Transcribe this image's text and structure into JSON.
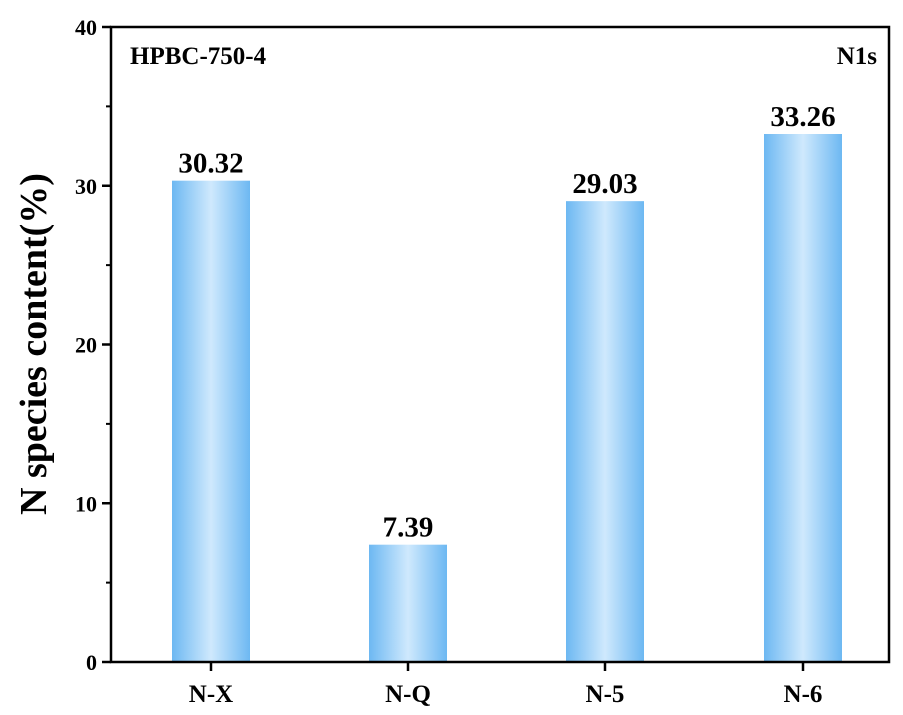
{
  "chart_data": {
    "type": "bar",
    "categories": [
      "N-X",
      "N-Q",
      "N-5",
      "N-6"
    ],
    "values": [
      30.32,
      7.39,
      29.03,
      33.26
    ],
    "value_labels": [
      "30.32",
      "7.39",
      "29.03",
      "33.26"
    ],
    "title": "",
    "xlabel": "",
    "ylabel": "N species content(%)",
    "ylim": [
      0,
      40
    ],
    "yticks": [
      0,
      10,
      20,
      30,
      40
    ],
    "grid": false,
    "annotations": {
      "sample": "HPBC-750-4",
      "region": "N1s"
    },
    "colors": {
      "bar_edge": "#6db8f2",
      "bar_center": "#cfe9fd",
      "axis": "#000000"
    }
  }
}
